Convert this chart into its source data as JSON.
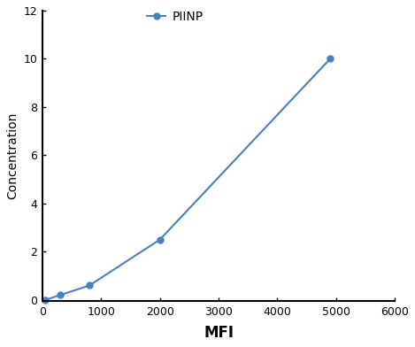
{
  "x": [
    50,
    300,
    800,
    2000,
    4900
  ],
  "y": [
    0.0,
    0.2,
    0.6,
    2.5,
    10.0
  ],
  "line_color": "#4a7fc1",
  "marker": "o",
  "marker_size": 5,
  "legend_label": "PIINP",
  "xlabel": "MFI",
  "ylabel": "Concentration",
  "xlim": [
    0,
    6000
  ],
  "ylim": [
    -0.05,
    12
  ],
  "xticks": [
    0,
    1000,
    2000,
    3000,
    4000,
    5000,
    6000
  ],
  "yticks": [
    0,
    2,
    4,
    6,
    8,
    10,
    12
  ],
  "xlabel_fontsize": 12,
  "ylabel_fontsize": 10,
  "tick_fontsize": 9,
  "legend_fontsize": 10,
  "background_color": "#ffffff",
  "spine_linewidth": 1.5,
  "line_width": 1.5
}
